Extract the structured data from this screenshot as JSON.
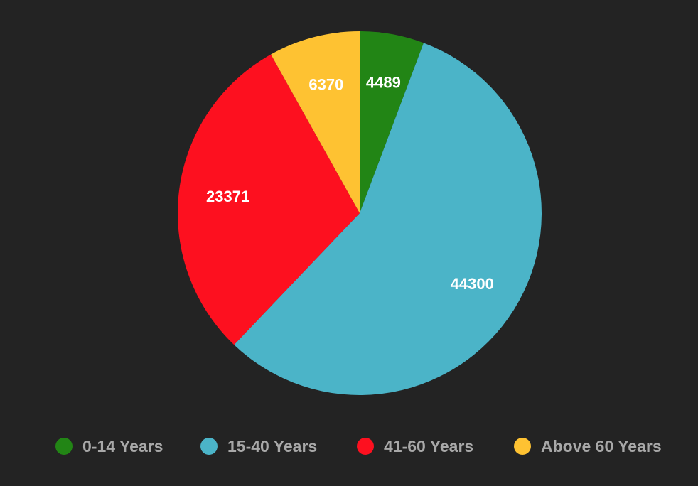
{
  "chart_data": {
    "type": "pie",
    "categories": [
      "0-14 Years",
      "15-40 Years",
      "41-60 Years",
      "Above 60 Years"
    ],
    "values": [
      4489,
      44300,
      23371,
      6370
    ],
    "colors": [
      "#228515",
      "#4bb4c8",
      "#fd101f",
      "#fec232"
    ],
    "data_labels": [
      "4489",
      "44300",
      "23371",
      "6370"
    ],
    "legend_placement": "bottom",
    "start_angle_deg": 0,
    "direction": "clockwise"
  },
  "legend": {
    "items": [
      {
        "label": "0-14 Years",
        "color": "#228515"
      },
      {
        "label": "15-40 Years",
        "color": "#4bb4c8"
      },
      {
        "label": "41-60 Years",
        "color": "#fd101f"
      },
      {
        "label": "Above 60 Years",
        "color": "#fec232"
      }
    ]
  }
}
